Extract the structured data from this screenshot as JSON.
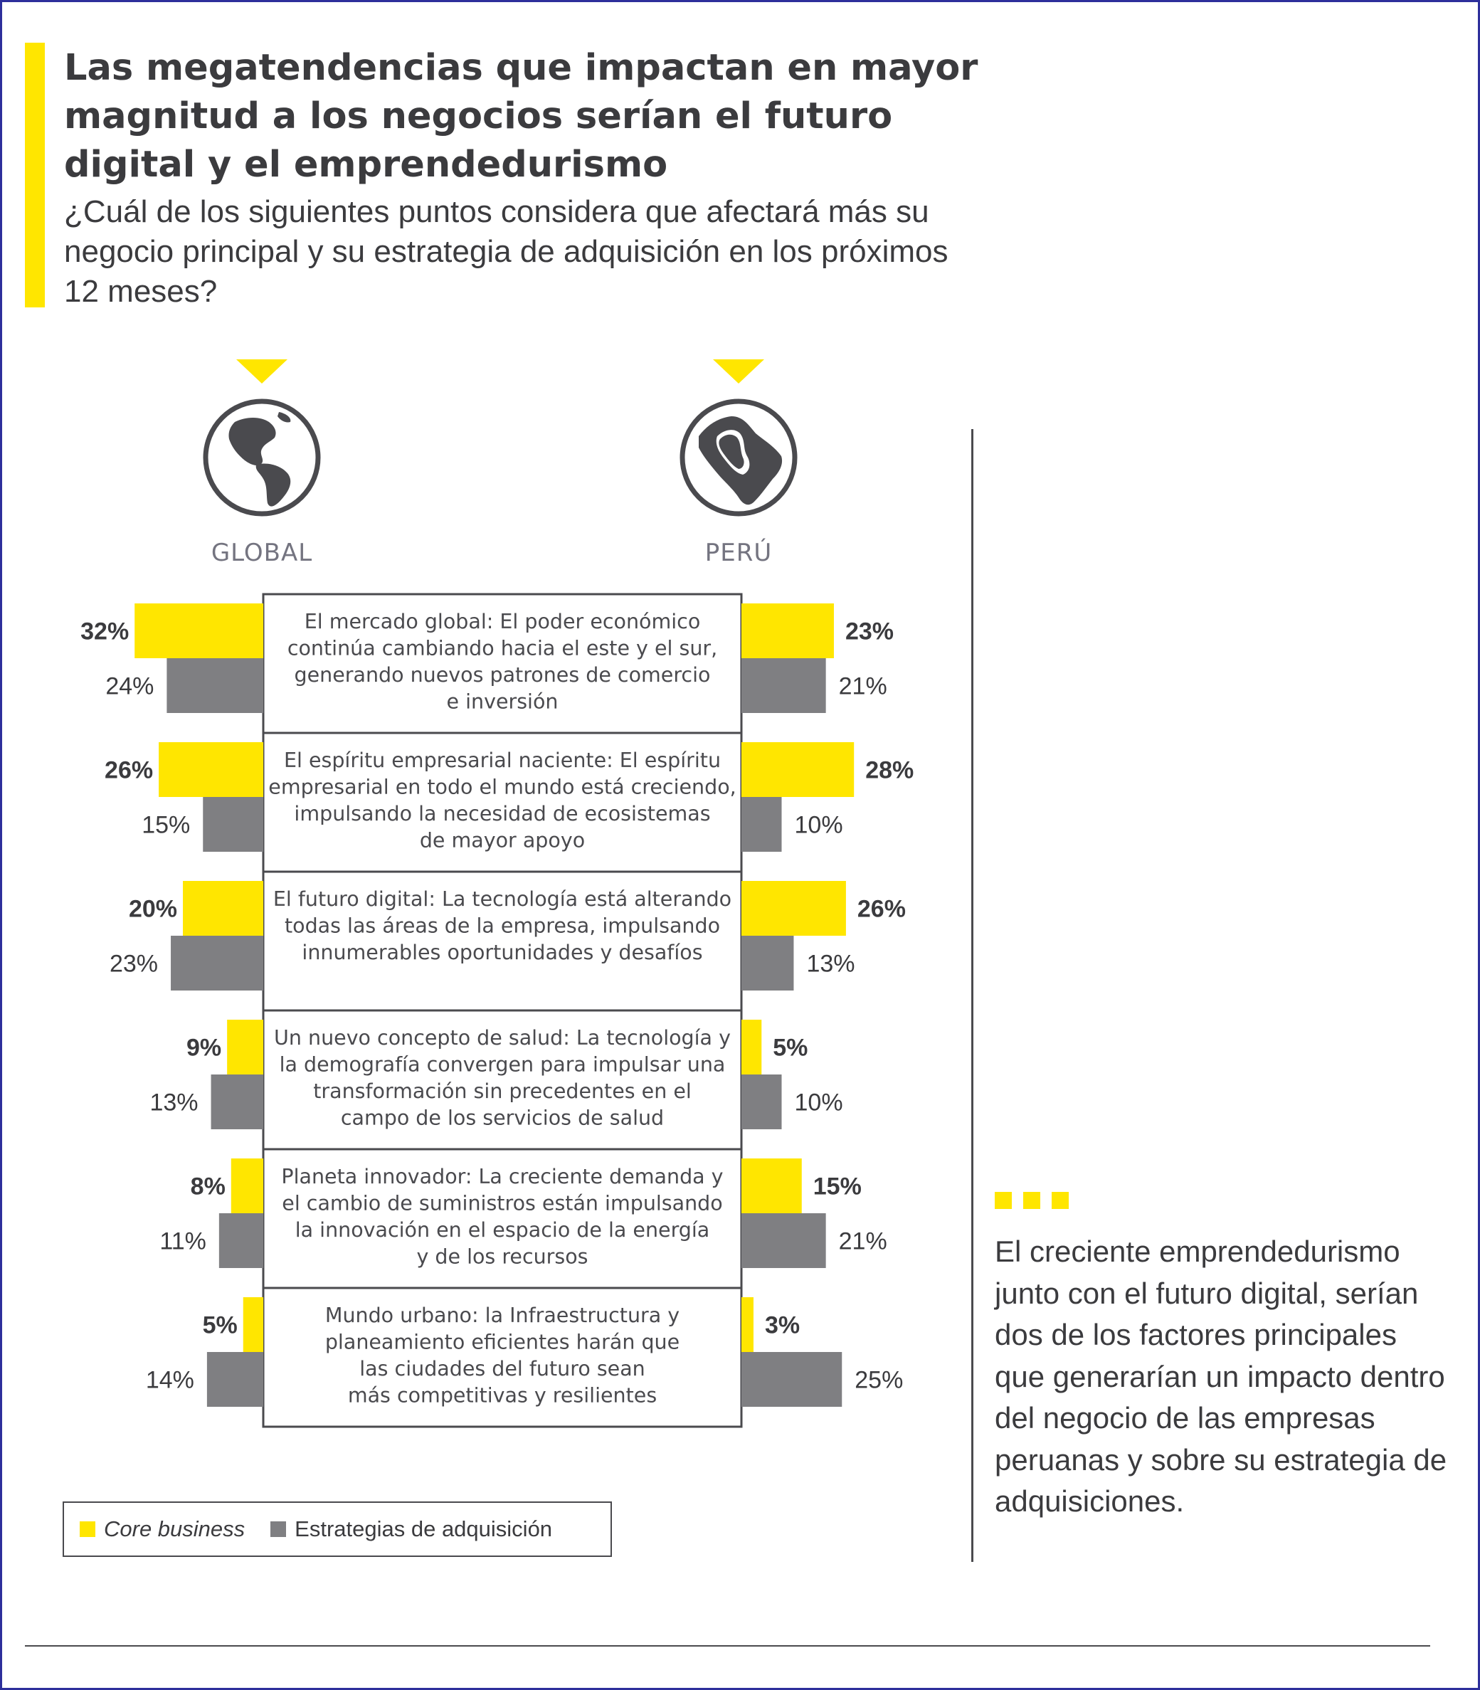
{
  "header": {
    "title": "Las megatendencias que impactan en mayor magnitud a los negocios serían el futuro digital y el emprendedurismo",
    "subtitle": "¿Cuál de los siguientes puntos considera que afectará más su negocio principal y su estrategia de adquisición en los próximos 12 meses?"
  },
  "regions": {
    "global": {
      "label": "GLOBAL",
      "icon": "globe-americas-icon"
    },
    "peru": {
      "label": "PERÚ",
      "icon": "globe-peru-icon"
    }
  },
  "colors": {
    "core": "#ffe600",
    "acquisition": "#7f7f82",
    "text": "#3b3b3e",
    "border": "#2d2f9b"
  },
  "chart_data": {
    "type": "bar",
    "orientation": "horizontal-butterfly",
    "categories": [
      "El mercado global: El poder económico continúa cambiando hacia el este y el sur, generando nuevos patrones de comercio e inversión",
      "El espíritu empresarial naciente: El espíritu empresarial en todo el mundo está creciendo, impulsando la necesidad de ecosistemas de mayor apoyo",
      "El futuro digital: La tecnología está alterando todas las áreas de la empresa, impulsando innumerables oportunidades y desafíos",
      "Un nuevo concepto de salud: La tecnología y la demografía convergen para impulsar una transformación sin precedentes en el campo de los servicios de salud",
      "Planeta innovador: La creciente demanda y el cambio de suministros están impulsando la innovación en el espacio de la energía y de los recursos",
      "Mundo urbano: la Infraestructura y planeamiento eficientes harán que las ciudades del futuro sean más competitivas y resilientes"
    ],
    "category_lines": [
      [
        "El mercado global: El poder económico",
        "continúa cambiando hacia el este y el sur,",
        "generando nuevos patrones de comercio",
        "e inversión"
      ],
      [
        "El espíritu empresarial naciente: El espíritu",
        "empresarial en todo el mundo está creciendo,",
        "impulsando la necesidad de ecosistemas",
        "de mayor apoyo"
      ],
      [
        "El futuro digital: La tecnología está alterando",
        "todas las áreas de la empresa, impulsando",
        "innumerables oportunidades y desafíos"
      ],
      [
        "Un nuevo concepto de salud: La tecnología y",
        "la demografía convergen para impulsar una",
        "transformación sin precedentes en el",
        "campo de los servicios de salud"
      ],
      [
        "Planeta innovador: La creciente demanda y",
        "el cambio de suministros están impulsando",
        "la innovación en el espacio de la energía",
        "y de los recursos"
      ],
      [
        "Mundo urbano: la Infraestructura y",
        "planeamiento eficientes harán que",
        "las ciudades del futuro sean",
        "más competitivas y resilientes"
      ]
    ],
    "groups": [
      {
        "name": "GLOBAL",
        "side": "left",
        "series": [
          {
            "name": "Core business",
            "values": [
              32,
              26,
              20,
              9,
              8,
              5
            ],
            "labels": [
              "32%",
              "26%",
              "20%",
              "9%",
              "8%",
              "5%"
            ]
          },
          {
            "name": "Estrategias de adquisición",
            "values": [
              24,
              15,
              23,
              13,
              11,
              14
            ],
            "labels": [
              "24%",
              "15%",
              "23%",
              "13%",
              "11%",
              "14%"
            ]
          }
        ]
      },
      {
        "name": "PERÚ",
        "side": "right",
        "series": [
          {
            "name": "Core business",
            "values": [
              23,
              28,
              26,
              5,
              15,
              3
            ],
            "labels": [
              "23%",
              "28%",
              "26%",
              "5%",
              "15%",
              "3%"
            ]
          },
          {
            "name": "Estrategias de adquisición",
            "values": [
              21,
              10,
              13,
              10,
              21,
              25
            ],
            "labels": [
              "21%",
              "10%",
              "13%",
              "10%",
              "21%",
              "25%"
            ]
          }
        ]
      }
    ],
    "legend": [
      {
        "name": "Core business",
        "color": "#ffe600",
        "italic": true
      },
      {
        "name": "Estrategias de adquisición",
        "color": "#7f7f82",
        "italic": false
      }
    ],
    "legend_position": "bottom-left"
  },
  "note": {
    "text": "El creciente emprendedurismo junto con el futuro digital, serían dos de los factores principales que generarían un impacto dentro del negocio de las empresas peruanas y sobre su estrategia de adquisiciones."
  }
}
